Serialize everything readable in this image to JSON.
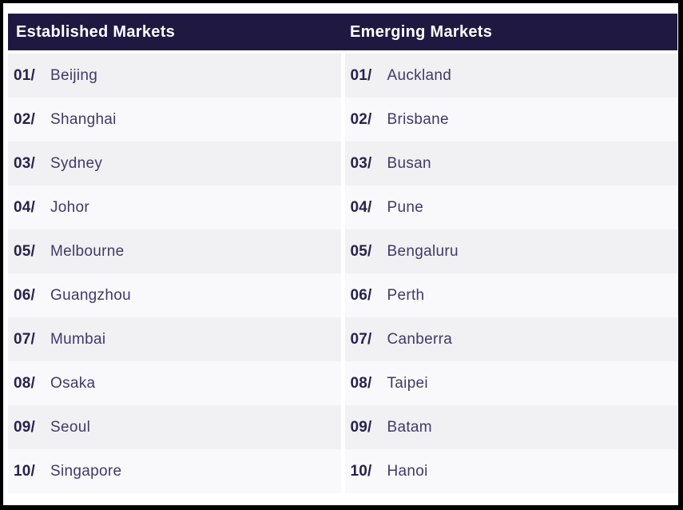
{
  "table": {
    "columns": [
      {
        "header": "Established Markets",
        "items": [
          {
            "rank": "01/",
            "city": "Beijing"
          },
          {
            "rank": "02/",
            "city": "Shanghai"
          },
          {
            "rank": "03/",
            "city": "Sydney"
          },
          {
            "rank": "04/",
            "city": "Johor"
          },
          {
            "rank": "05/",
            "city": "Melbourne"
          },
          {
            "rank": "06/",
            "city": "Guangzhou"
          },
          {
            "rank": "07/",
            "city": "Mumbai"
          },
          {
            "rank": "08/",
            "city": "Osaka"
          },
          {
            "rank": "09/",
            "city": "Seoul"
          },
          {
            "rank": "10/",
            "city": "Singapore"
          }
        ]
      },
      {
        "header": "Emerging Markets",
        "items": [
          {
            "rank": "01/",
            "city": "Auckland"
          },
          {
            "rank": "02/",
            "city": "Brisbane"
          },
          {
            "rank": "03/",
            "city": "Busan"
          },
          {
            "rank": "04/",
            "city": "Pune"
          },
          {
            "rank": "05/",
            "city": "Bengaluru"
          },
          {
            "rank": "06/",
            "city": "Perth"
          },
          {
            "rank": "07/",
            "city": "Canberra"
          },
          {
            "rank": "08/",
            "city": "Taipei"
          },
          {
            "rank": "09/",
            "city": "Batam"
          },
          {
            "rank": "10/",
            "city": "Hanoi"
          }
        ]
      }
    ]
  },
  "chart_data": {
    "type": "table",
    "columns": [
      "Established Markets",
      "Emerging Markets"
    ],
    "established_markets_ranking": [
      "Beijing",
      "Shanghai",
      "Sydney",
      "Johor",
      "Melbourne",
      "Guangzhou",
      "Mumbai",
      "Osaka",
      "Seoul",
      "Singapore"
    ],
    "emerging_markets_ranking": [
      "Auckland",
      "Brisbane",
      "Busan",
      "Pune",
      "Bengaluru",
      "Perth",
      "Canberra",
      "Taipei",
      "Batam",
      "Hanoi"
    ]
  },
  "colors": {
    "frame_border": "#000000",
    "header_bg": "#1f1942",
    "header_text": "#ffffff",
    "row_odd_bg": "#f1f0f2",
    "row_even_bg": "#f9f8fa",
    "rank_text": "#27224d",
    "city_text": "#403a68"
  }
}
